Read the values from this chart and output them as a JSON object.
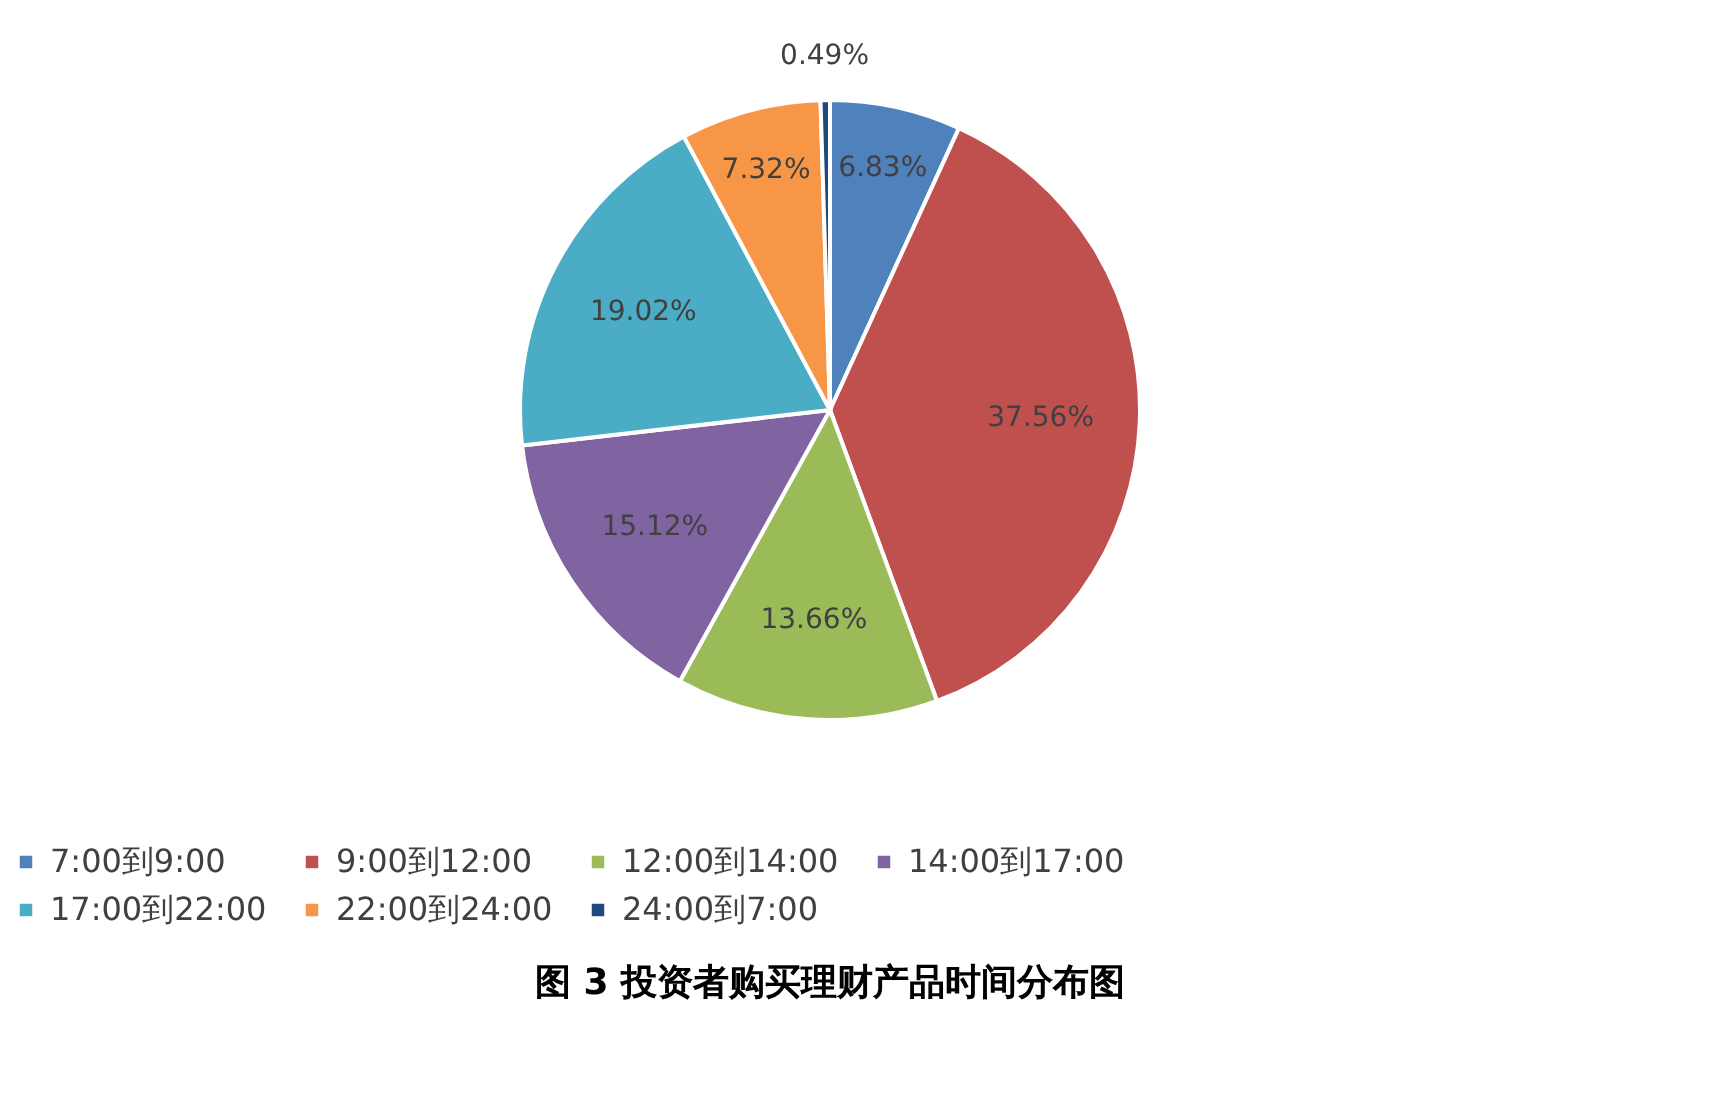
{
  "chart_data": {
    "type": "pie",
    "title": "图 3  投资者购买理财产品时间分布图",
    "categories": [
      "7:00到9:00",
      "9:00到12:00",
      "12:00到14:00",
      "14:00到17:00",
      "17:00到22:00",
      "22:00到24:00",
      "24:00到7:00"
    ],
    "values": [
      6.83,
      37.56,
      13.66,
      15.12,
      19.02,
      7.32,
      0.49
    ],
    "colors": [
      "#4f81bd",
      "#c0504d",
      "#9bbb59",
      "#8064a2",
      "#4bacc6",
      "#f79646",
      "#1f497d"
    ],
    "value_labels": [
      "6.83%",
      "37.56%",
      "13.66%",
      "15.12%",
      "19.02%",
      "7.32%",
      "0.49%"
    ],
    "legend": "bottom"
  }
}
